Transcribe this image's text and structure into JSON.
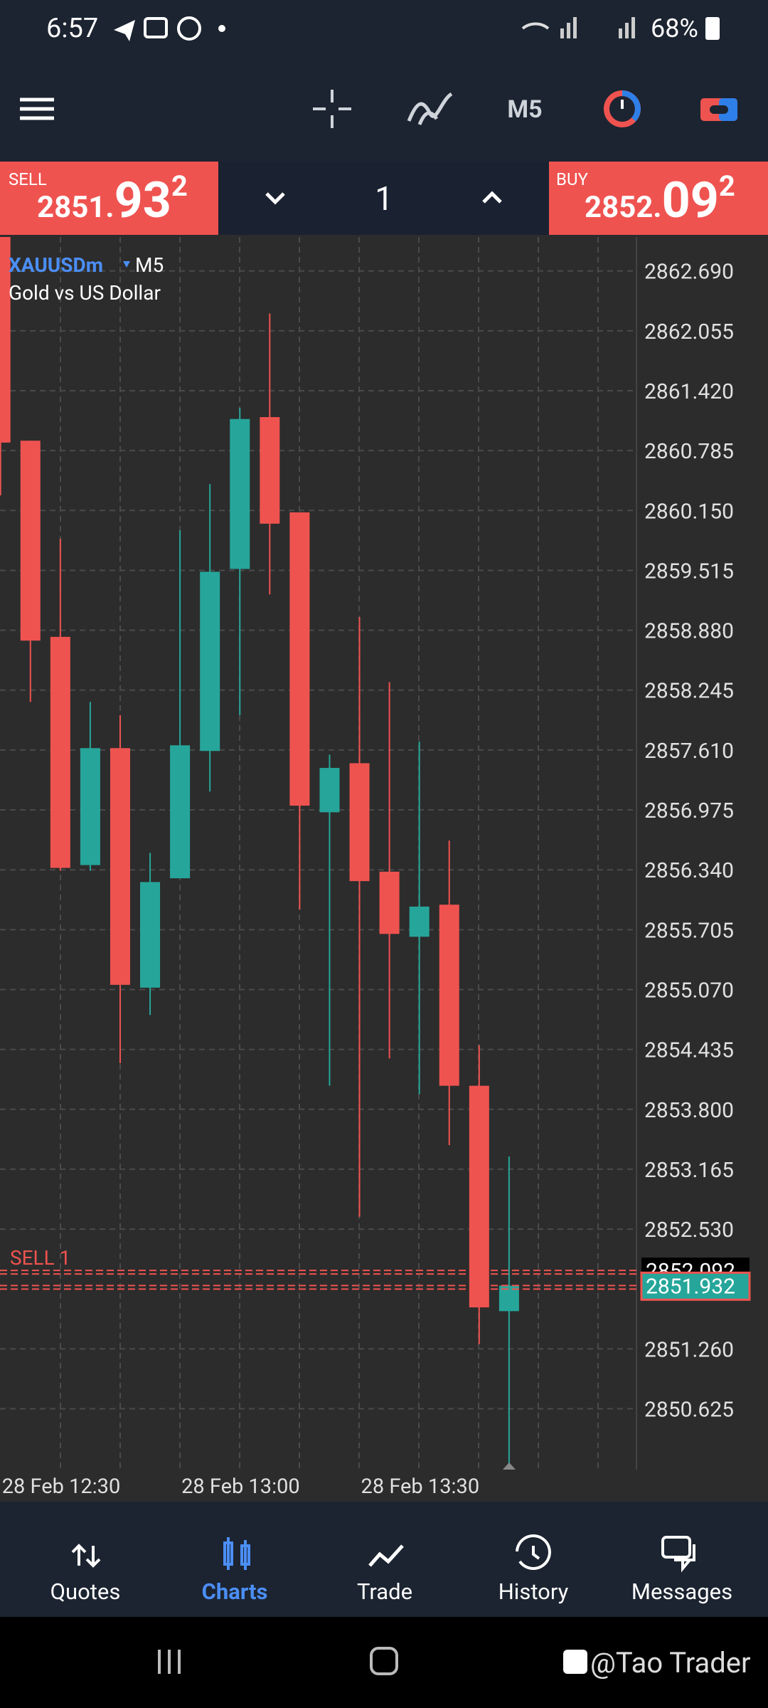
{
  "status_bar": {
    "time": "6:57",
    "battery": "68%"
  },
  "toolbar": {
    "timeframe": "M5"
  },
  "trade_panel": {
    "sell": {
      "label": "SELL",
      "price_main": "2851.",
      "price_big": "93",
      "price_sup": "2"
    },
    "volume": "1",
    "buy": {
      "label": "BUY",
      "price_main": "2852.",
      "price_big": "09",
      "price_sup": "2"
    }
  },
  "chart_data": {
    "type": "candlestick",
    "symbol": "XAUUSDm",
    "timeframe": "M5",
    "description": "Gold vs US Dollar",
    "categories": [
      "28 Feb 12:30",
      null,
      null,
      null,
      null,
      null,
      "28 Feb 13:00",
      null,
      null,
      null,
      null,
      null,
      "28 Feb 13:30",
      null,
      null,
      null,
      null,
      null
    ],
    "open": [
      2863.2,
      2860.89,
      2858.81,
      2856.39,
      2857.63,
      2855.09,
      2856.25,
      2857.6,
      2859.53,
      2861.14,
      2860.13,
      2856.95,
      2857.47,
      2856.32,
      2855.63,
      2855.97,
      2854.05,
      2851.66
    ],
    "high": [
      2863.3,
      2860.89,
      2859.85,
      2858.12,
      2857.98,
      2856.52,
      2859.94,
      2860.43,
      2861.24,
      2862.24,
      2860.13,
      2857.56,
      2859.02,
      2858.33,
      2857.7,
      2856.65,
      2854.48,
      2853.3
    ],
    "low": [
      2860.31,
      2858.12,
      2856.33,
      2856.33,
      2854.29,
      2854.8,
      2856.25,
      2857.17,
      2857.98,
      2859.26,
      2855.92,
      2854.05,
      2852.66,
      2854.34,
      2853.96,
      2853.42,
      2851.31,
      2850.04
    ],
    "close": [
      2860.87,
      2858.77,
      2856.36,
      2857.63,
      2855.12,
      2856.21,
      2857.66,
      2859.5,
      2861.12,
      2860.01,
      2857.02,
      2857.42,
      2856.22,
      2855.66,
      2855.95,
      2854.05,
      2851.7,
      2851.93
    ],
    "up_color": "#26a69a",
    "down_color": "#ef5350",
    "ylim": [
      2849.98,
      2863.05
    ],
    "yticks": [
      {
        "value": 2862.69,
        "label": "2862.690"
      },
      2862.055,
      {
        "value": 2861.42,
        "label": "2861.420"
      },
      2860.785,
      {
        "value": 2860.15,
        "label": "2860.150"
      },
      2859.515,
      {
        "value": 2858.88,
        "label": "2858.880"
      },
      2858.245,
      {
        "value": 2857.61,
        "label": "2857.610"
      },
      2856.975,
      {
        "value": 2856.34,
        "label": "2856.340"
      },
      2855.705,
      {
        "value": 2855.07,
        "label": "2855.070"
      },
      2854.435,
      {
        "value": 2853.8,
        "label": "2853.800"
      },
      2853.165,
      {
        "value": 2852.53,
        "label": "2852.530"
      },
      {
        "value": 2851.26,
        "label": "2851.260"
      },
      2850.625
    ],
    "grid": true,
    "ask": 2852.092,
    "bid": 2851.932,
    "position_label": "SELL 1"
  },
  "nav": {
    "items": [
      "Quotes",
      "Charts",
      "Trade",
      "History",
      "Messages"
    ],
    "active": 1
  },
  "watermark": "@Tao Trader"
}
